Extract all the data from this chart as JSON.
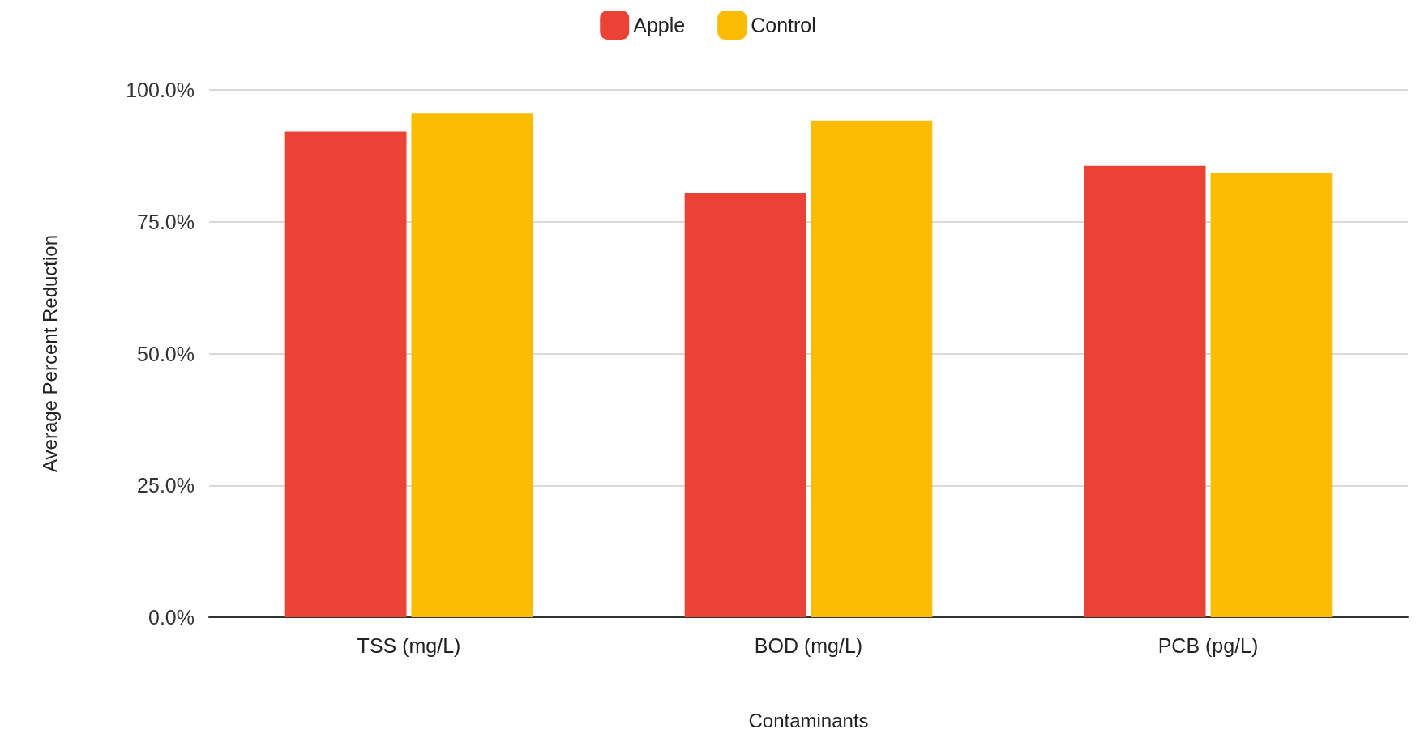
{
  "chart_data": {
    "type": "bar",
    "xlabel": "Contaminants",
    "ylabel": "Average Percent Reduction",
    "categories": [
      "TSS (mg/L)",
      "BOD (mg/L)",
      "PCB (pg/L)"
    ],
    "series": [
      {
        "name": "Apple",
        "color": "#ea4335",
        "values": [
          92.1,
          80.5,
          85.6
        ]
      },
      {
        "name": "Control",
        "color": "#fbbc04",
        "values": [
          95.5,
          94.2,
          84.2
        ]
      }
    ],
    "ylim": [
      0,
      100
    ],
    "yticks": [
      {
        "value": 0,
        "label": "0.0%"
      },
      {
        "value": 25,
        "label": "25.0%"
      },
      {
        "value": 50,
        "label": "50.0%"
      },
      {
        "value": 75,
        "label": "75.0%"
      },
      {
        "value": 100,
        "label": "100.0%"
      }
    ],
    "grid": "y",
    "legend": "top"
  }
}
